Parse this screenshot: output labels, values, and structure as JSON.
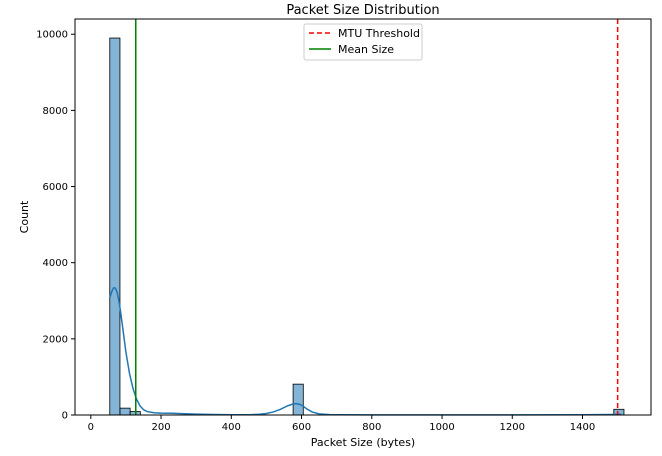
{
  "chart_data": {
    "type": "histogram",
    "title": "Packet Size Distribution",
    "xlabel": "Packet Size (bytes)",
    "ylabel": "Count",
    "xlim": [
      -45,
      1595
    ],
    "ylim": [
      0,
      10400
    ],
    "x_ticks": [
      "0",
      "200",
      "400",
      "600",
      "800",
      "1000",
      "1200",
      "1400"
    ],
    "x_tick_values": [
      0,
      200,
      400,
      600,
      800,
      1000,
      1200,
      1400
    ],
    "y_ticks": [
      "0",
      "2000",
      "4000",
      "6000",
      "8000",
      "10000"
    ],
    "y_tick_values": [
      0,
      2000,
      4000,
      6000,
      8000,
      10000
    ],
    "bar_color": "#1f77b4",
    "bars": [
      {
        "x0": 54,
        "x1": 83,
        "count": 9900
      },
      {
        "x0": 83,
        "x1": 112,
        "count": 180
      },
      {
        "x0": 112,
        "x1": 141,
        "count": 90
      },
      {
        "x0": 576,
        "x1": 605,
        "count": 810
      },
      {
        "x0": 1489,
        "x1": 1518,
        "count": 150
      }
    ],
    "kde": {
      "color": "#1f77b4",
      "x": [
        55,
        60,
        65,
        70,
        75,
        80,
        85,
        90,
        95,
        100,
        110,
        120,
        130,
        140,
        150,
        160,
        180,
        200,
        230,
        260,
        300,
        350,
        400,
        450,
        480,
        500,
        520,
        540,
        560,
        575,
        585,
        595,
        605,
        615,
        630,
        650,
        680,
        720,
        800,
        1000,
        1200,
        1400,
        1480,
        1503,
        1510
      ],
      "y": [
        3100,
        3250,
        3340,
        3330,
        3220,
        3000,
        2700,
        2350,
        2000,
        1650,
        1100,
        700,
        420,
        240,
        140,
        90,
        60,
        50,
        45,
        35,
        22,
        12,
        8,
        6,
        20,
        40,
        80,
        150,
        240,
        285,
        300,
        280,
        230,
        160,
        80,
        30,
        10,
        5,
        3,
        3,
        3,
        5,
        12,
        18,
        15
      ]
    },
    "lines": [
      {
        "name": "MTU Threshold",
        "x": 1500,
        "color": "#ff0000",
        "style": "dashed"
      },
      {
        "name": "Mean Size",
        "x": 128,
        "color": "#008000",
        "style": "solid"
      }
    ],
    "legend_position": "top-center",
    "grid": false
  }
}
